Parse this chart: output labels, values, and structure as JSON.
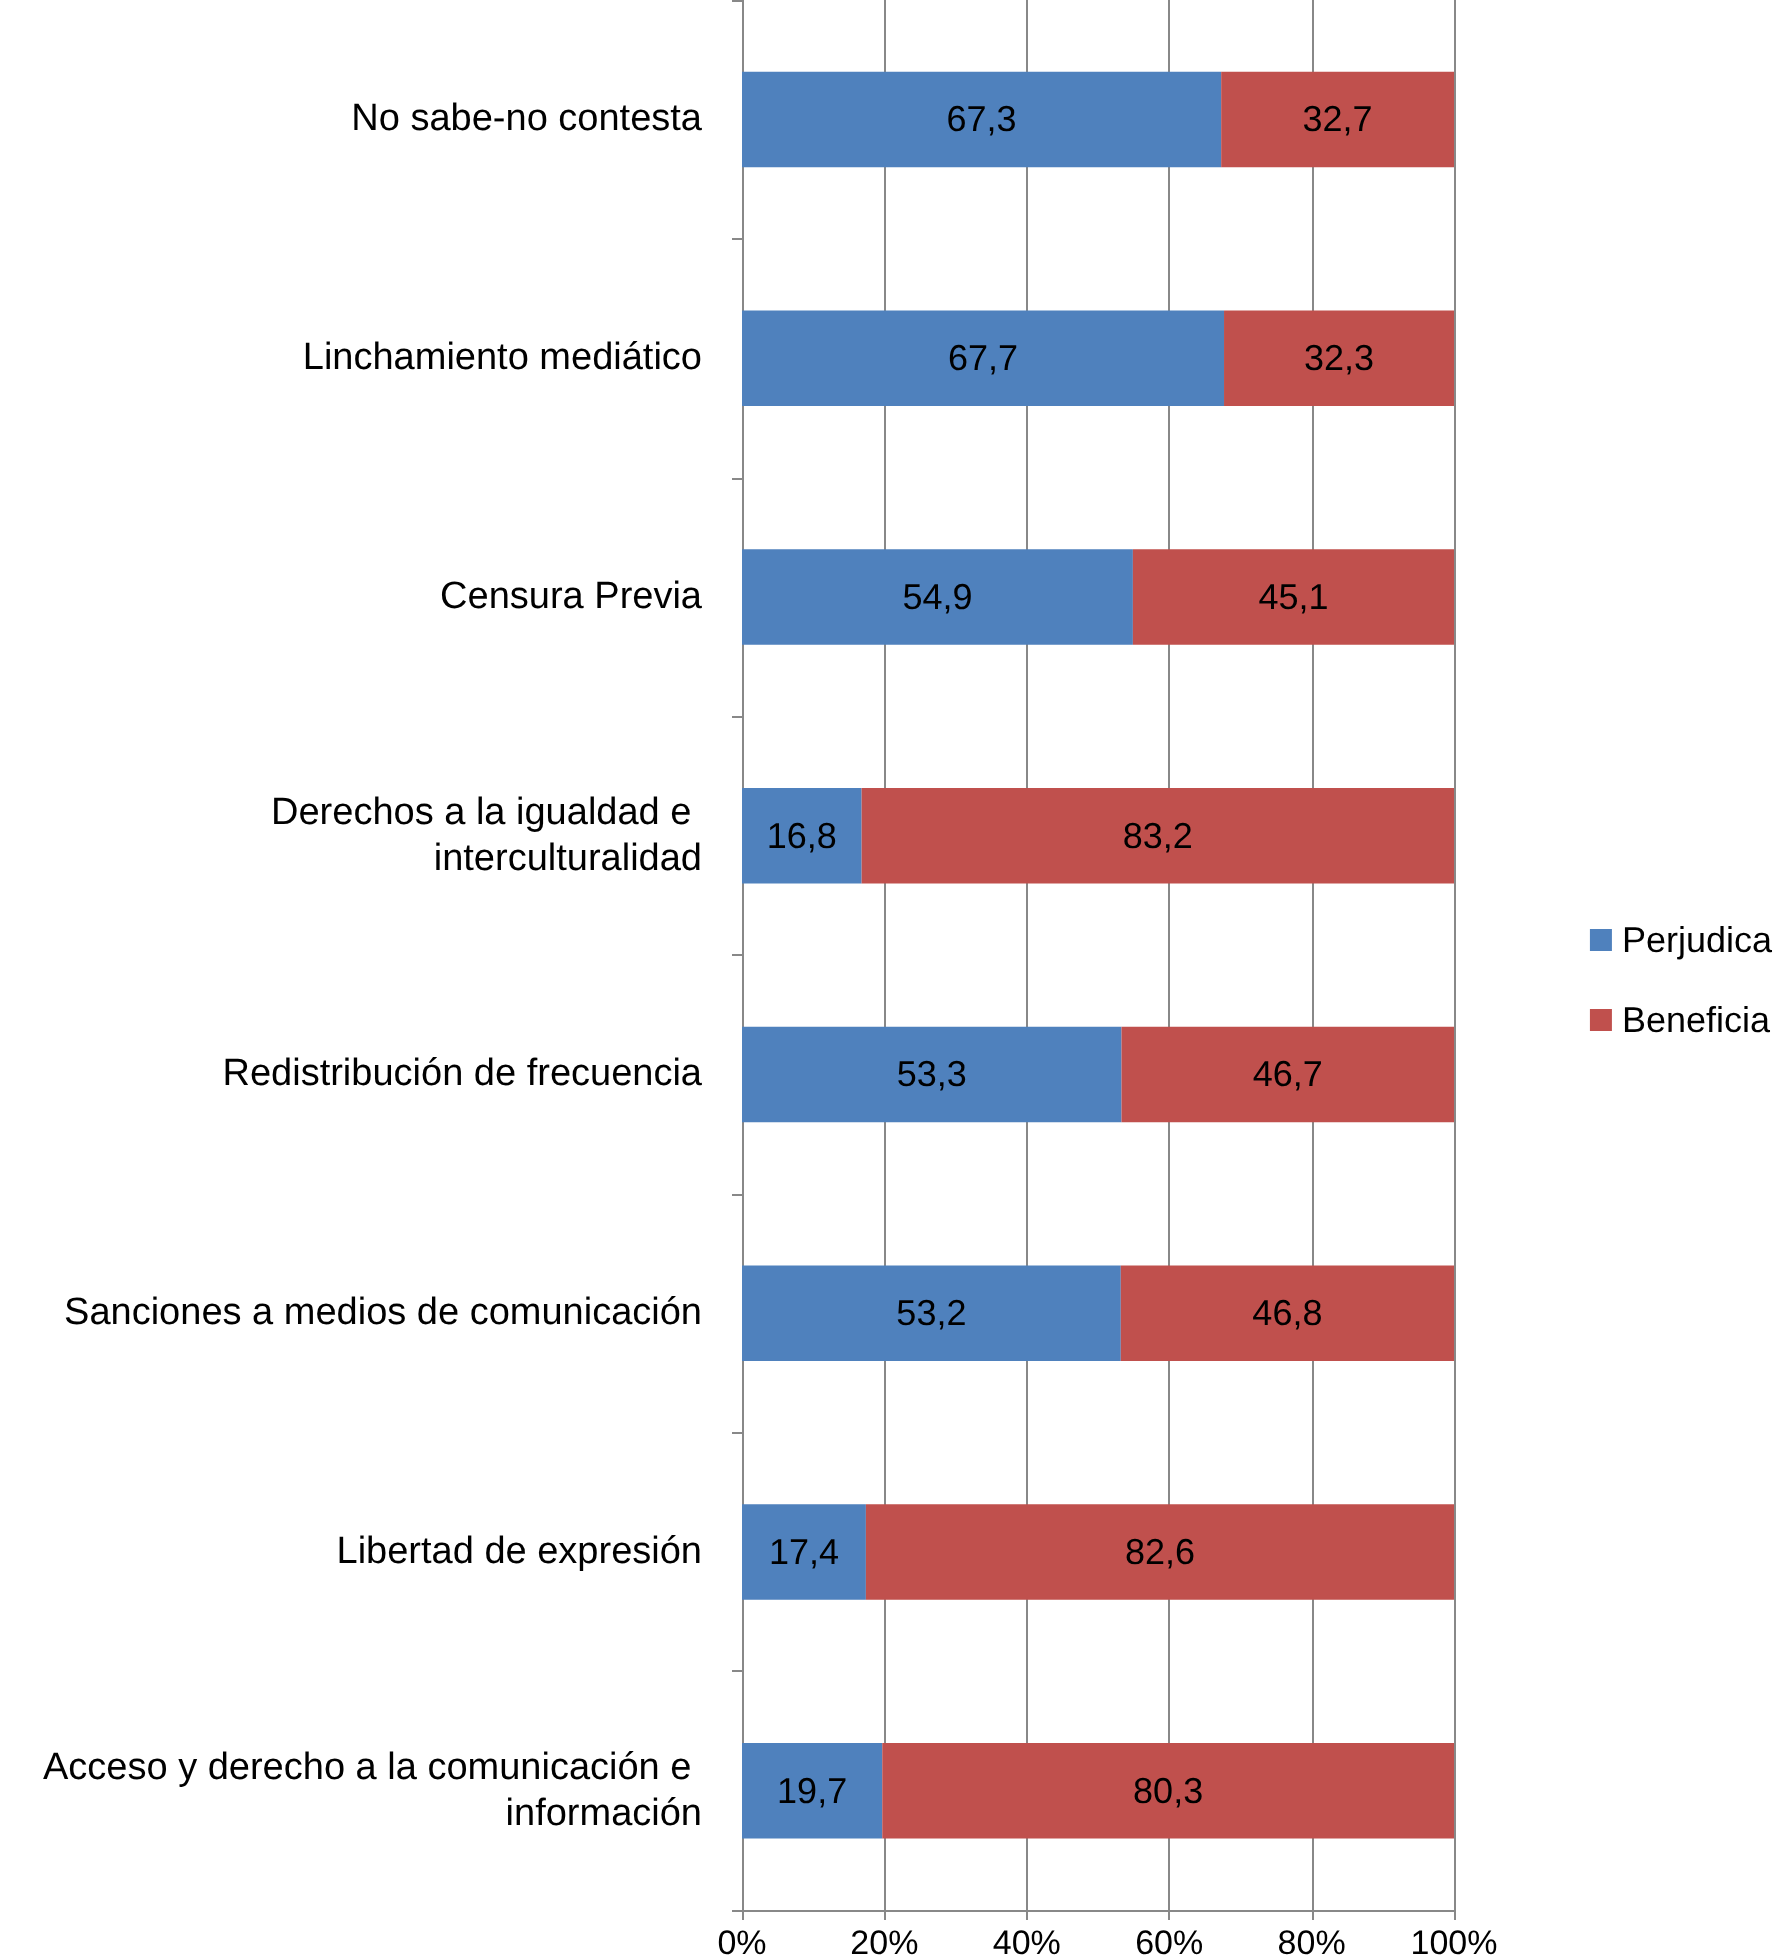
{
  "chart_data": {
    "type": "bar",
    "orientation": "horizontal",
    "stacked": true,
    "categories": [
      "No sabe-no contesta",
      "Linchamiento mediático",
      "Censura Previa",
      "Derechos a la igualdad e interculturalidad",
      "Redistribución de frecuencia",
      "Sanciones a medios de comunicación",
      "Libertad de expresión",
      "Acceso y derecho a la comunicación e información"
    ],
    "series": [
      {
        "name": "Perjudica",
        "color": "#4f81bd",
        "values": [
          67.3,
          67.7,
          54.9,
          16.8,
          53.3,
          53.2,
          17.4,
          19.7
        ],
        "value_labels": [
          "67,3",
          "67,7",
          "54,9",
          "16,8",
          "53,3",
          "53,2",
          "17,4",
          "19,7"
        ]
      },
      {
        "name": "Beneficia",
        "color": "#c0504d",
        "values": [
          32.7,
          32.3,
          45.1,
          83.2,
          46.7,
          46.8,
          82.6,
          80.3
        ],
        "value_labels": [
          "32,7",
          "32,3",
          "45,1",
          "83,2",
          "46,7",
          "46,8",
          "82,6",
          "80,3"
        ]
      }
    ],
    "xlim": [
      0,
      100
    ],
    "xticks": [
      {
        "value": 0,
        "label": "0%"
      },
      {
        "value": 20,
        "label": "20%"
      },
      {
        "value": 40,
        "label": "40%"
      },
      {
        "value": 60,
        "label": "60%"
      },
      {
        "value": 80,
        "label": "80%"
      },
      {
        "value": 100,
        "label": "100%"
      }
    ],
    "grid": "x",
    "legend": "right"
  }
}
